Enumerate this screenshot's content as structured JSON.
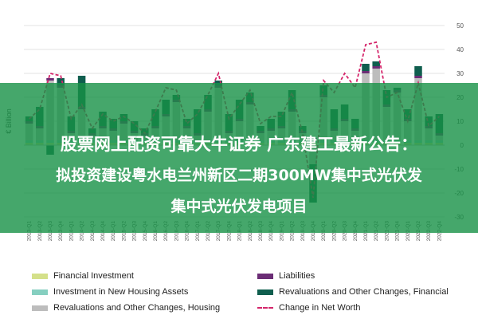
{
  "chart_data": {
    "type": "bar",
    "ylabel": "€ Billion",
    "ylim": [
      -30,
      50
    ],
    "yticks": [
      -30,
      -20,
      -10,
      0,
      10,
      20,
      30,
      40,
      50
    ],
    "grid": true,
    "legend_position": "bottom",
    "categories": [
      "2013-Q1",
      "2013-Q2",
      "2013-Q3",
      "2013-Q4",
      "2014-Q1",
      "2014-Q2",
      "2014-Q3",
      "2014-Q4",
      "2015-Q1",
      "2015-Q2",
      "2015-Q3",
      "2015-Q4",
      "2016-Q1",
      "2016-Q2",
      "2016-Q3",
      "2016-Q4",
      "2017-Q1",
      "2017-Q2",
      "2017-Q3",
      "2017-Q4",
      "2018-Q1",
      "2018-Q2",
      "2018-Q3",
      "2018-Q4",
      "2019-Q1",
      "2019-Q2",
      "2019-Q3",
      "2019-Q4",
      "2020-Q1",
      "2020-Q2",
      "2020-Q3",
      "2020-Q4",
      "2021-Q1",
      "2021-Q2",
      "2021-Q3",
      "2021-Q4",
      "2022-Q1",
      "2022-Q2",
      "2022-Q3",
      "2022-Q4"
    ],
    "series": [
      {
        "name": "Financial Investment",
        "color": "#d4e08a",
        "values": [
          1,
          1,
          1,
          1,
          1,
          1,
          1,
          1,
          1,
          1,
          1,
          1,
          1,
          1,
          1,
          1,
          1,
          1,
          1,
          1,
          1,
          1,
          1,
          1,
          1,
          1,
          1,
          1,
          1,
          1,
          1,
          1,
          1,
          1,
          1,
          1,
          1,
          1,
          1,
          1
        ]
      },
      {
        "name": "Investment in New Housing Assets",
        "color": "#86cfc0",
        "values": [
          1,
          1,
          1,
          1,
          1,
          1,
          1,
          1,
          1,
          1,
          1,
          1,
          1,
          1,
          1,
          1,
          1,
          1,
          1,
          1,
          1,
          1,
          1,
          1,
          1,
          1,
          1,
          1,
          1,
          1,
          1,
          1,
          1,
          1,
          1,
          1,
          1,
          1,
          1,
          1
        ]
      },
      {
        "name": "Revaluations and Other Changes, Housing",
        "color": "#bdbdbd",
        "values": [
          7,
          5,
          25,
          22,
          3,
          13,
          2,
          5,
          4,
          7,
          3,
          2,
          5,
          10,
          16,
          5,
          2,
          12,
          22,
          3,
          8,
          15,
          3,
          4,
          5,
          12,
          3,
          -8,
          18,
          4,
          8,
          4,
          28,
          30,
          14,
          20,
          8,
          26,
          5,
          2
        ]
      },
      {
        "name": "Liabilities",
        "color": "#6b2d75",
        "values": [
          1,
          1,
          1,
          1,
          1,
          1,
          1,
          1,
          1,
          1,
          1,
          1,
          1,
          1,
          1,
          1,
          1,
          1,
          1,
          1,
          1,
          1,
          1,
          1,
          1,
          1,
          1,
          1,
          1,
          1,
          1,
          1,
          1,
          1,
          1,
          1,
          1,
          1,
          1,
          1
        ]
      },
      {
        "name": "Revaluations and Other Changes, Financial",
        "color": "#0f5e4e",
        "values": [
          2,
          8,
          -4,
          3,
          6,
          13,
          2,
          6,
          4,
          3,
          4,
          2,
          7,
          6,
          2,
          3,
          10,
          6,
          2,
          7,
          8,
          4,
          2,
          4,
          6,
          8,
          2,
          -16,
          4,
          8,
          6,
          4,
          3,
          2,
          6,
          1,
          4,
          4,
          4,
          8
        ]
      }
    ],
    "line": {
      "name": "Change in Net Worth",
      "color": "#d4256a",
      "values": [
        11,
        15,
        30,
        29,
        11,
        17,
        7,
        13,
        10,
        12,
        9,
        5,
        14,
        24,
        23,
        9,
        13,
        21,
        30,
        11,
        17,
        23,
        9,
        12,
        12,
        22,
        5,
        -22,
        27,
        22,
        30,
        24,
        42,
        43,
        20,
        22,
        10,
        26,
        8,
        12
      ]
    }
  },
  "overlay": {
    "line1": "股票网上配资可靠大牛证券 广东建工最新公告：",
    "line2": "拟投资建设粤水电兰州新区二期300MW集中式光伏发",
    "line3": "集中式光伏发电项目"
  }
}
